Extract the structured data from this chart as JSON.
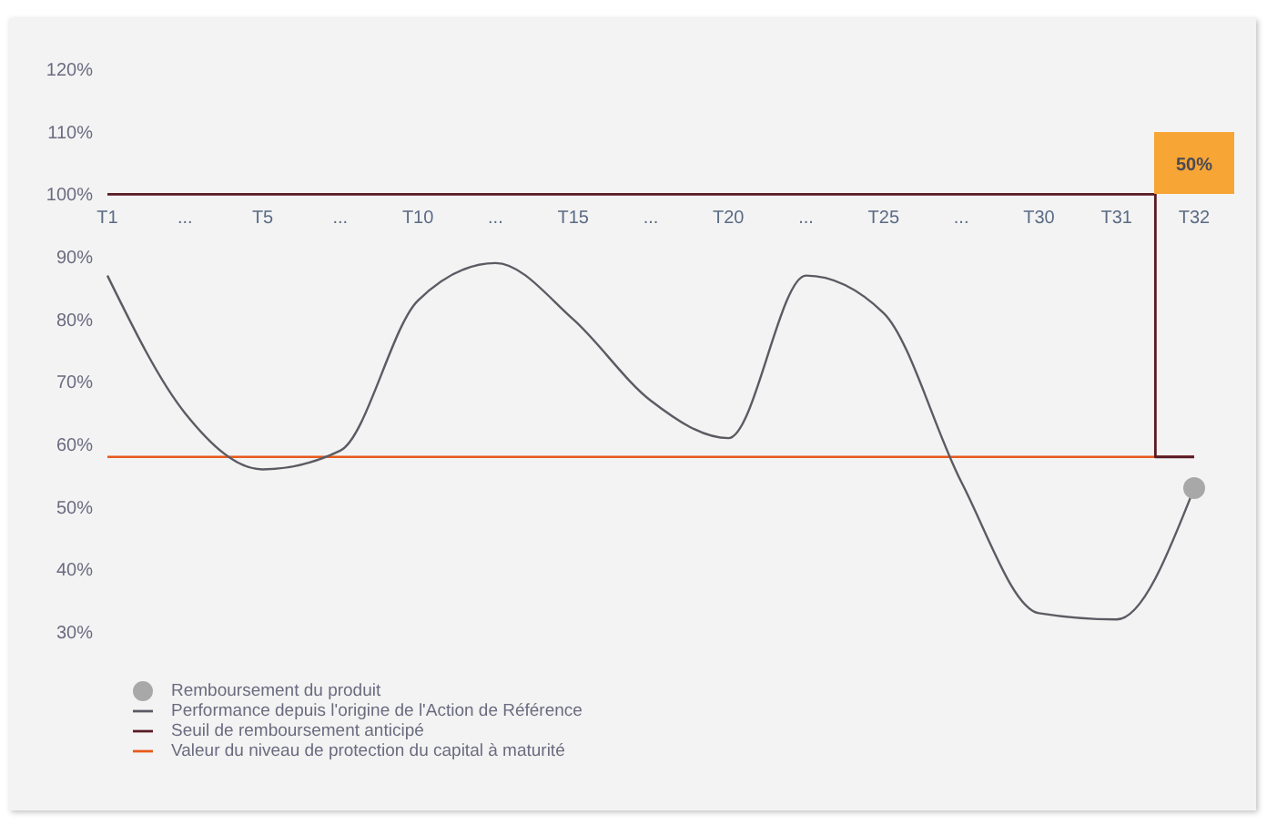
{
  "chart_data": {
    "type": "line",
    "categories": [
      "T1",
      "...",
      "T5",
      "...",
      "T10",
      "...",
      "T15",
      "...",
      "T20",
      "...",
      "T25",
      "...",
      "T30",
      "T31",
      "T32"
    ],
    "series": [
      {
        "name": "Valeur du niveau de protection du capital à maturité",
        "color": "#e8591a",
        "values": [
          58,
          58,
          58,
          58,
          58,
          58,
          58,
          58,
          58,
          58,
          58,
          58,
          58,
          58,
          58
        ]
      },
      {
        "name": "Seuil de remboursement anticipé",
        "type": "step",
        "color": "#5a1a24",
        "values": [
          100,
          100,
          100,
          100,
          100,
          100,
          100,
          100,
          100,
          100,
          100,
          100,
          100,
          100,
          58
        ]
      },
      {
        "name": "Performance depuis l'origine de l'Action de Référence",
        "color": "#5b5b63",
        "values": [
          87,
          65,
          56,
          59,
          83,
          89,
          80,
          67,
          61,
          87,
          81,
          54,
          33,
          32,
          53
        ]
      },
      {
        "name": "Remboursement du produit",
        "type": "scatter",
        "marker": "circle",
        "color": "#a8a8a8",
        "values": [
          null,
          null,
          null,
          null,
          null,
          null,
          null,
          null,
          null,
          null,
          null,
          null,
          null,
          null,
          53
        ]
      }
    ],
    "annotations": [
      {
        "text": "50%",
        "x": "T32",
        "y": 105
      }
    ],
    "ylim": [
      30,
      120
    ],
    "yticks": [
      {
        "value": 30,
        "label": "30%"
      },
      {
        "value": 40,
        "label": "40%"
      },
      {
        "value": 50,
        "label": "50%"
      },
      {
        "value": 60,
        "label": "60%"
      },
      {
        "value": 70,
        "label": "70%"
      },
      {
        "value": 80,
        "label": "80%"
      },
      {
        "value": 90,
        "label": "90%"
      },
      {
        "value": 100,
        "label": "100%"
      },
      {
        "value": 110,
        "label": "110%"
      },
      {
        "value": 120,
        "label": "120%"
      }
    ],
    "grid": false,
    "legend": "bottom left",
    "marker": "none"
  }
}
